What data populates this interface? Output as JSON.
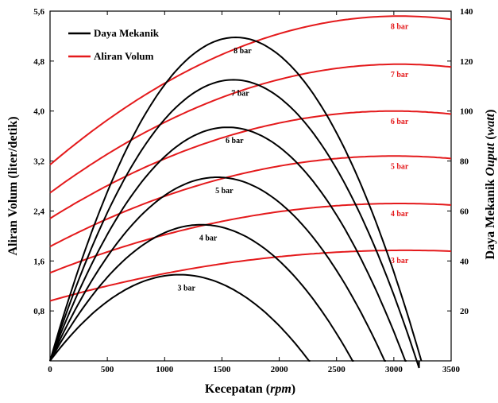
{
  "chart_data": {
    "type": "line",
    "xlabel": "Kecepatan",
    "xlabel_unit": "rpm",
    "ylabel_left": "Aliran Volum (liter/detik)",
    "ylabel_right": "Daya Mekanik",
    "ylabel_right_italic": "Ouput",
    "ylabel_right_unit": "watt",
    "xlim": [
      0,
      3500
    ],
    "ylim_left": [
      0,
      5.6
    ],
    "ylim_right": [
      0,
      140
    ],
    "x_ticks": [
      0,
      500,
      1000,
      1500,
      2000,
      2500,
      3000,
      3500
    ],
    "y_left_ticks": [
      0.8,
      1.6,
      2.4,
      3.2,
      4.0,
      4.8,
      5.6
    ],
    "y_left_tick_labels": [
      "0,8",
      "1,6",
      "2,4",
      "3,2",
      "4,0",
      "4,8",
      "5,6"
    ],
    "y_right_ticks": [
      20,
      40,
      60,
      80,
      100,
      120,
      140
    ],
    "grid": false,
    "legend": {
      "placement": "top-left",
      "entries": [
        {
          "label": "Daya Mekanik",
          "color": "#000000"
        },
        {
          "label": "Aliran Volum",
          "color": "#e41a1c"
        }
      ]
    },
    "colors": {
      "power": "#000000",
      "flow": "#e41a1c"
    },
    "power_series": [
      {
        "label": "3 bar",
        "x_zero": 2270,
        "peak_x": 1130,
        "peak_y": 34.5
      },
      {
        "label": "4 bar",
        "x_zero": 2650,
        "peak_x": 1320,
        "peak_y": 54.5
      },
      {
        "label": "5 bar",
        "x_zero": 2930,
        "peak_x": 1460,
        "peak_y": 73.5
      },
      {
        "label": "6 bar",
        "x_zero": 3110,
        "peak_x": 1550,
        "peak_y": 93.5
      },
      {
        "label": "7 bar",
        "x_zero": 3220,
        "peak_x": 1600,
        "peak_y": 112.5
      },
      {
        "label": "8 bar",
        "x_zero": 3240,
        "peak_x": 1620,
        "peak_y": 129.5
      }
    ],
    "flow_series": [
      {
        "label": "3 bar",
        "y0": 0.96,
        "peak_x": 3100,
        "peak_y": 1.77,
        "y_end": 1.76
      },
      {
        "label": "4 bar",
        "y0": 1.41,
        "peak_x": 3050,
        "peak_y": 2.52,
        "y_end": 2.51
      },
      {
        "label": "5 bar",
        "y0": 1.83,
        "peak_x": 3000,
        "peak_y": 3.28,
        "y_end": 3.26
      },
      {
        "label": "6 bar",
        "y0": 2.28,
        "peak_x": 3000,
        "peak_y": 4.0,
        "y_end": 3.97
      },
      {
        "label": "7 bar",
        "y0": 2.69,
        "peak_x": 3050,
        "peak_y": 4.75,
        "y_end": 4.71
      },
      {
        "label": "8 bar",
        "y0": 3.14,
        "peak_x": 3050,
        "peak_y": 5.52,
        "y_end": 5.46
      }
    ]
  }
}
